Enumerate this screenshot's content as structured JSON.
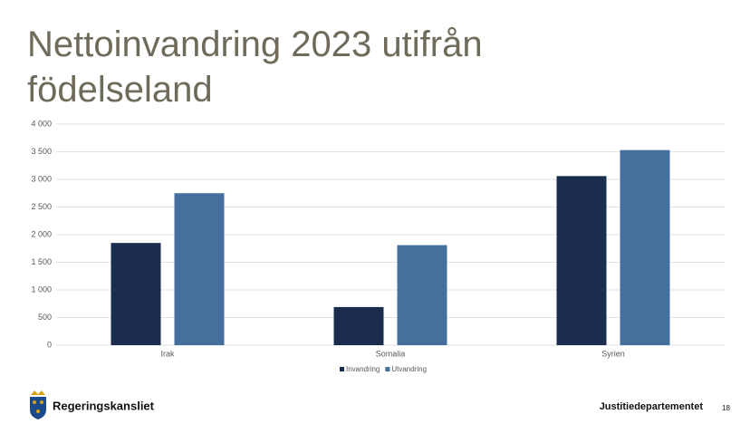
{
  "chart_data": {
    "type": "bar",
    "title": "Nettoinvandring 2023 utifrån födelseland",
    "categories": [
      "Irak",
      "Somalia",
      "Syrien"
    ],
    "series": [
      {
        "name": "Invandring",
        "color": "#1b2d4f",
        "values": [
          1850,
          690,
          3060
        ]
      },
      {
        "name": "Utvandring",
        "color": "#45709e",
        "values": [
          2750,
          1810,
          3530
        ]
      }
    ],
    "ylim": [
      0,
      4000
    ],
    "yticks": [
      0,
      500,
      {
        "value": 1000,
        "label": "1 000"
      },
      {
        "value": 1500,
        "label": "1 500"
      },
      {
        "value": 2000,
        "label": "2 000"
      },
      {
        "value": 2500,
        "label": "2 500"
      },
      {
        "value": 3000,
        "label": "3 000"
      },
      {
        "value": 3500,
        "label": "3 500"
      },
      {
        "value": 4000,
        "label": "4 000"
      }
    ],
    "grid": true,
    "legend": "bottom"
  },
  "footer": {
    "logo_text": "Regeringskansliet",
    "department": "Justitiedepartementet",
    "page_number": "18"
  }
}
